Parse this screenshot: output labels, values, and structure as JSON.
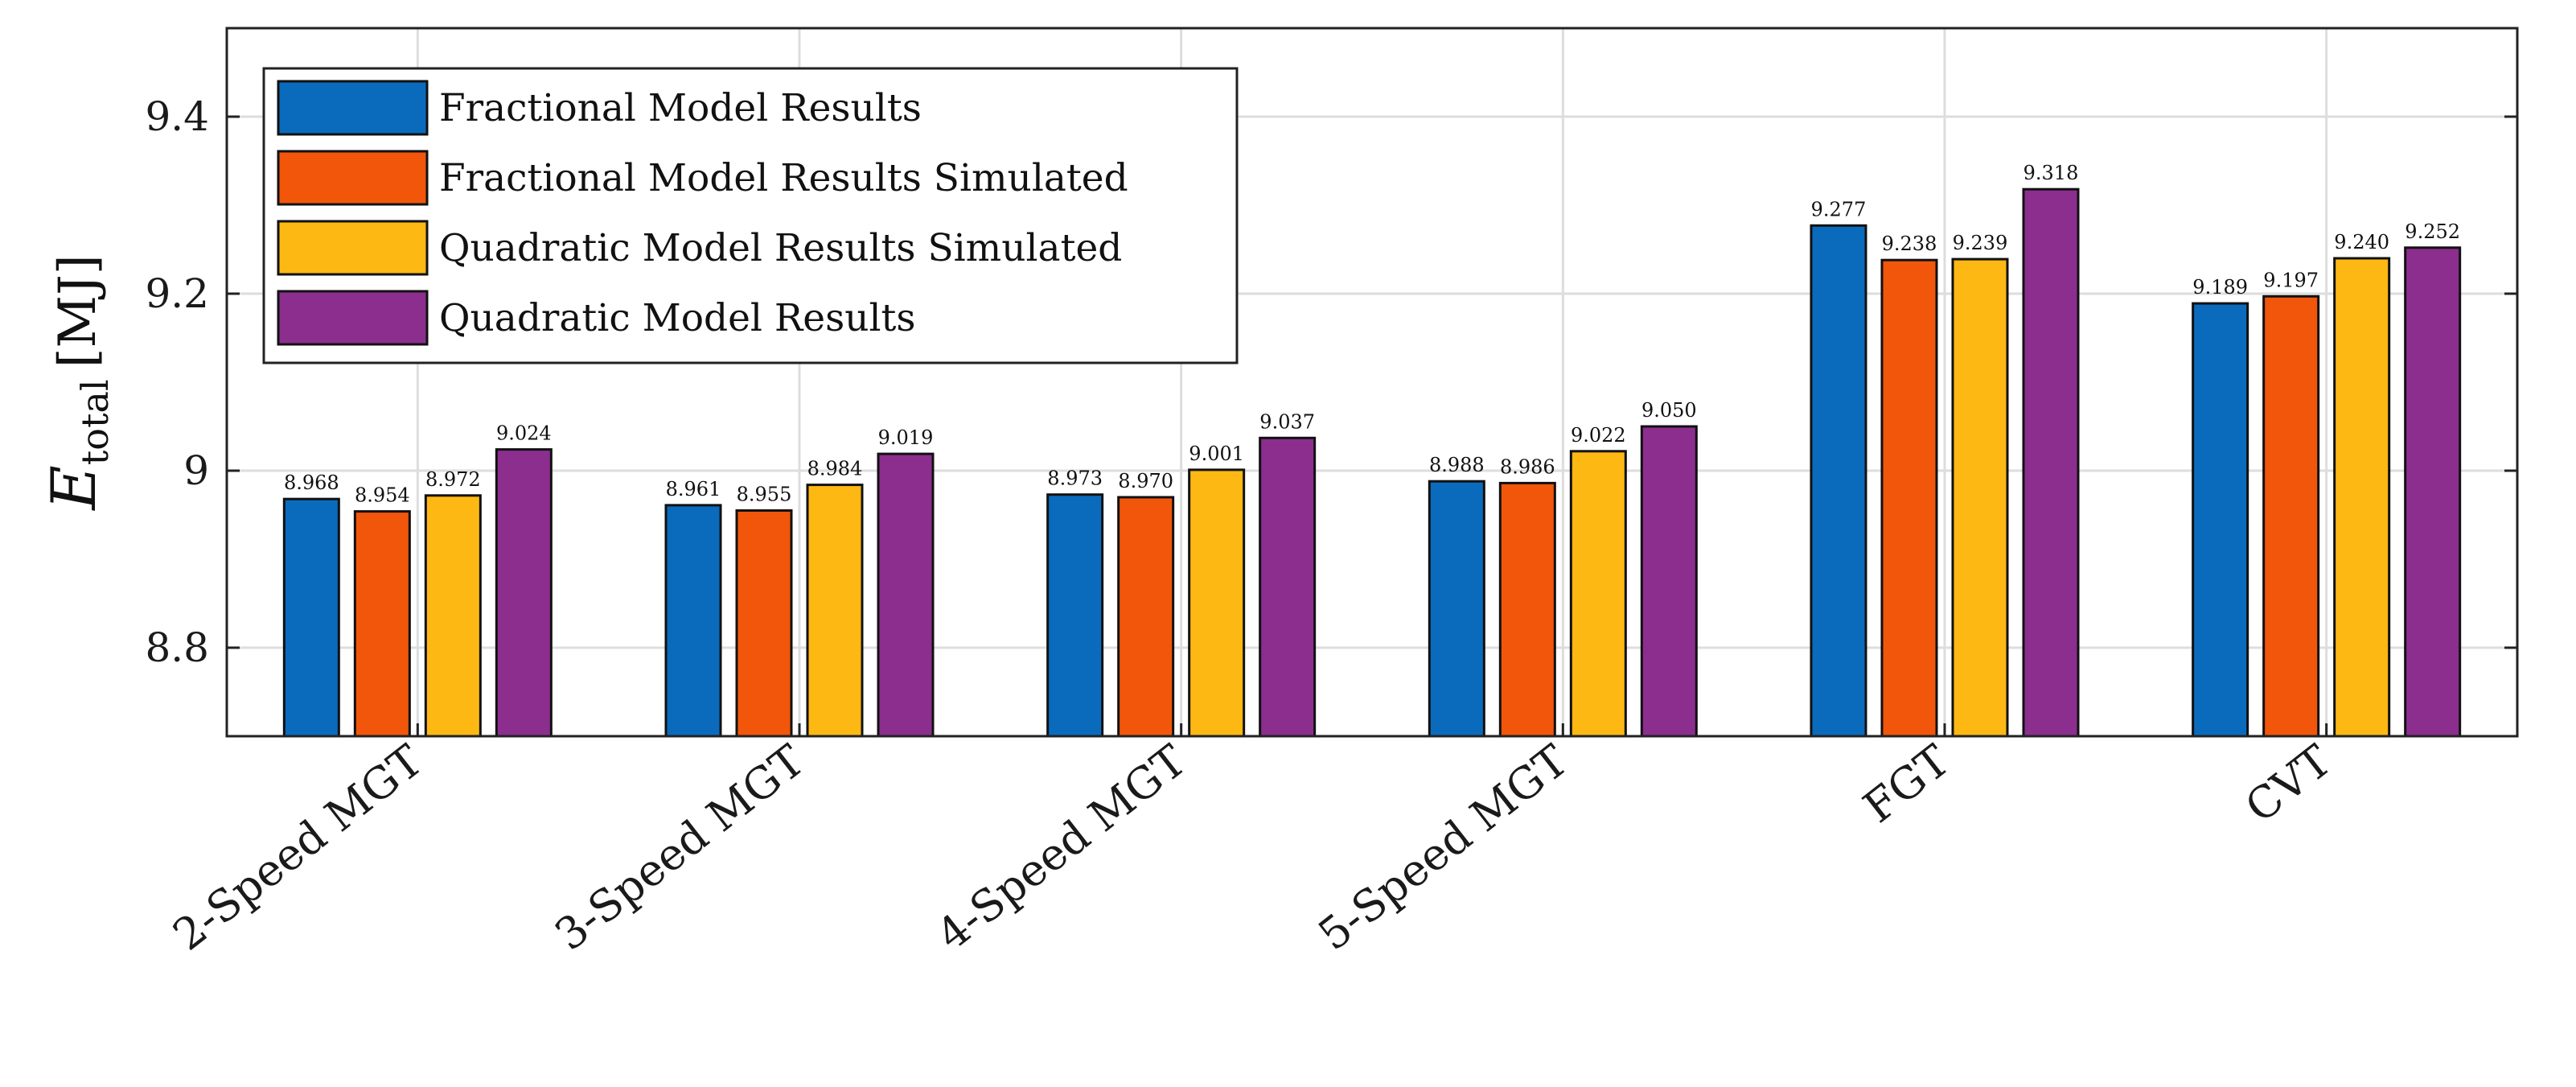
{
  "chart_data": {
    "type": "bar",
    "title": "",
    "xlabel": "",
    "ylabel": {
      "symbol": "E",
      "subscript": "total",
      "unit": "[MJ]"
    },
    "ylim": [
      8.7,
      9.5
    ],
    "yticks": [
      8.8,
      9,
      9.2,
      9.4
    ],
    "ytick_labels": [
      "8.8",
      "9",
      "9.2",
      "9.4"
    ],
    "grid": true,
    "legend_position": "top-left",
    "categories": [
      "2-Speed MGT",
      "3-Speed MGT",
      "4-Speed MGT",
      "5-Speed MGT",
      "FGT",
      "CVT"
    ],
    "series": [
      {
        "name": "Fractional Model Results",
        "color": "#0a6bbd",
        "values": [
          8.968,
          8.961,
          8.973,
          8.988,
          9.277,
          9.189
        ],
        "labels": [
          "8.968",
          "8.961",
          "8.973",
          "8.988",
          "9.277",
          "9.189"
        ]
      },
      {
        "name": "Fractional Model Results Simulated",
        "color": "#f2560a",
        "values": [
          8.954,
          8.955,
          8.97,
          8.986,
          9.238,
          9.197
        ],
        "labels": [
          "8.954",
          "8.955",
          "8.970",
          "8.986",
          "9.238",
          "9.197"
        ]
      },
      {
        "name": "Quadratic Model Results Simulated",
        "color": "#fdb813",
        "values": [
          8.972,
          8.984,
          9.001,
          9.022,
          9.239,
          9.24
        ],
        "labels": [
          "8.972",
          "8.984",
          "9.001",
          "9.022",
          "9.239",
          "9.240"
        ]
      },
      {
        "name": "Quadratic Model Results",
        "color": "#8b2e8e",
        "values": [
          9.024,
          9.019,
          9.037,
          9.05,
          9.318,
          9.252
        ],
        "labels": [
          "9.024",
          "9.019",
          "9.037",
          "9.050",
          "9.318",
          "9.252"
        ]
      }
    ]
  }
}
